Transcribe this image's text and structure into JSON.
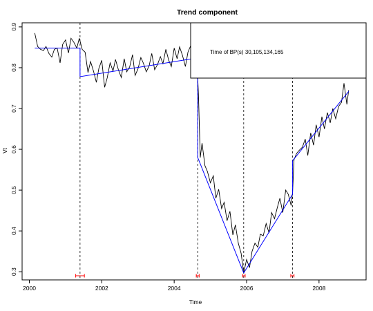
{
  "chart_data": {
    "type": "line",
    "title": "Trend component",
    "xlabel": "Time",
    "ylabel": "Vt",
    "xlim": [
      1999.8,
      2009.3
    ],
    "ylim": [
      0.28,
      0.91
    ],
    "x_ticks": [
      2000,
      2002,
      2004,
      2006,
      2008
    ],
    "y_ticks": [
      0.3,
      0.4,
      0.5,
      0.6,
      0.7,
      0.8,
      0.9
    ],
    "grid": false,
    "legend_text": "Time of BP(s) 30,105,134,165",
    "legend_position": "top-right",
    "colors": {
      "data": "#000000",
      "fit": "#0000ff",
      "breakpoint": "#000000",
      "ci": "#ff0000"
    },
    "breakpoints": [
      2001.4,
      2004.65,
      2005.92,
      2007.27
    ],
    "breakpoint_ci": [
      [
        2001.28,
        2001.52
      ],
      [
        2004.61,
        2004.69
      ],
      [
        2005.89,
        2005.96
      ],
      [
        2007.22,
        2007.31
      ]
    ],
    "fit_segments": [
      [
        [
          2000.15,
          0.848
        ],
        [
          2001.4,
          0.848
        ]
      ],
      [
        [
          2001.4,
          0.778
        ],
        [
          2004.65,
          0.824
        ]
      ],
      [
        [
          2004.65,
          0.58
        ],
        [
          2005.92,
          0.297
        ]
      ],
      [
        [
          2005.92,
          0.297
        ],
        [
          2007.27,
          0.49
        ]
      ],
      [
        [
          2007.27,
          0.572
        ],
        [
          2008.82,
          0.742
        ]
      ]
    ],
    "series": [
      {
        "x": [
          2000.15,
          2000.23,
          2000.31,
          2000.39,
          2000.46,
          2000.54,
          2000.62,
          2000.69,
          2000.77,
          2000.85,
          2000.92,
          2001.0,
          2001.08,
          2001.15,
          2001.23,
          2001.31,
          2001.38,
          2001.46,
          2001.54,
          2001.62,
          2001.69,
          2001.77,
          2001.85,
          2001.92,
          2002.0,
          2002.08,
          2002.15,
          2002.23,
          2002.31,
          2002.38,
          2002.46,
          2002.54,
          2002.62,
          2002.69,
          2002.77,
          2002.85,
          2002.92,
          2003.0,
          2003.08,
          2003.15,
          2003.23,
          2003.31,
          2003.38,
          2003.46,
          2003.54,
          2003.62,
          2003.69,
          2003.77,
          2003.85,
          2003.92,
          2004.0,
          2004.08,
          2004.15,
          2004.23,
          2004.31,
          2004.38,
          2004.46,
          2004.54,
          2004.62,
          2004.67,
          2004.72,
          2004.77,
          2004.85,
          2004.92,
          2005.0,
          2005.08,
          2005.15,
          2005.23,
          2005.31,
          2005.38,
          2005.46,
          2005.54,
          2005.62,
          2005.69,
          2005.77,
          2005.85,
          2005.92,
          2006.0,
          2006.08,
          2006.15,
          2006.23,
          2006.31,
          2006.38,
          2006.46,
          2006.54,
          2006.62,
          2006.69,
          2006.77,
          2006.85,
          2006.92,
          2007.0,
          2007.08,
          2007.15,
          2007.23,
          2007.27,
          2007.31,
          2007.38,
          2007.46,
          2007.54,
          2007.62,
          2007.69,
          2007.77,
          2007.85,
          2007.92,
          2008.0,
          2008.08,
          2008.15,
          2008.23,
          2008.31,
          2008.38,
          2008.46,
          2008.54,
          2008.62,
          2008.69,
          2008.77,
          2008.82
        ],
        "y": [
          0.885,
          0.852,
          0.845,
          0.842,
          0.852,
          0.835,
          0.826,
          0.845,
          0.848,
          0.812,
          0.857,
          0.868,
          0.836,
          0.872,
          0.862,
          0.848,
          0.872,
          0.845,
          0.838,
          0.788,
          0.815,
          0.792,
          0.764,
          0.798,
          0.818,
          0.752,
          0.775,
          0.812,
          0.792,
          0.82,
          0.795,
          0.776,
          0.822,
          0.79,
          0.802,
          0.832,
          0.781,
          0.797,
          0.825,
          0.811,
          0.79,
          0.805,
          0.835,
          0.795,
          0.808,
          0.827,
          0.81,
          0.845,
          0.818,
          0.803,
          0.848,
          0.822,
          0.851,
          0.83,
          0.803,
          0.838,
          0.855,
          0.82,
          0.834,
          0.735,
          0.58,
          0.615,
          0.56,
          0.545,
          0.518,
          0.535,
          0.48,
          0.502,
          0.455,
          0.47,
          0.425,
          0.448,
          0.39,
          0.415,
          0.37,
          0.345,
          0.297,
          0.33,
          0.31,
          0.35,
          0.37,
          0.36,
          0.392,
          0.388,
          0.418,
          0.395,
          0.445,
          0.43,
          0.458,
          0.48,
          0.445,
          0.5,
          0.49,
          0.462,
          0.495,
          0.575,
          0.59,
          0.598,
          0.605,
          0.625,
          0.585,
          0.64,
          0.61,
          0.66,
          0.63,
          0.68,
          0.65,
          0.69,
          0.665,
          0.7,
          0.675,
          0.705,
          0.715,
          0.762,
          0.71,
          0.745
        ]
      }
    ]
  }
}
